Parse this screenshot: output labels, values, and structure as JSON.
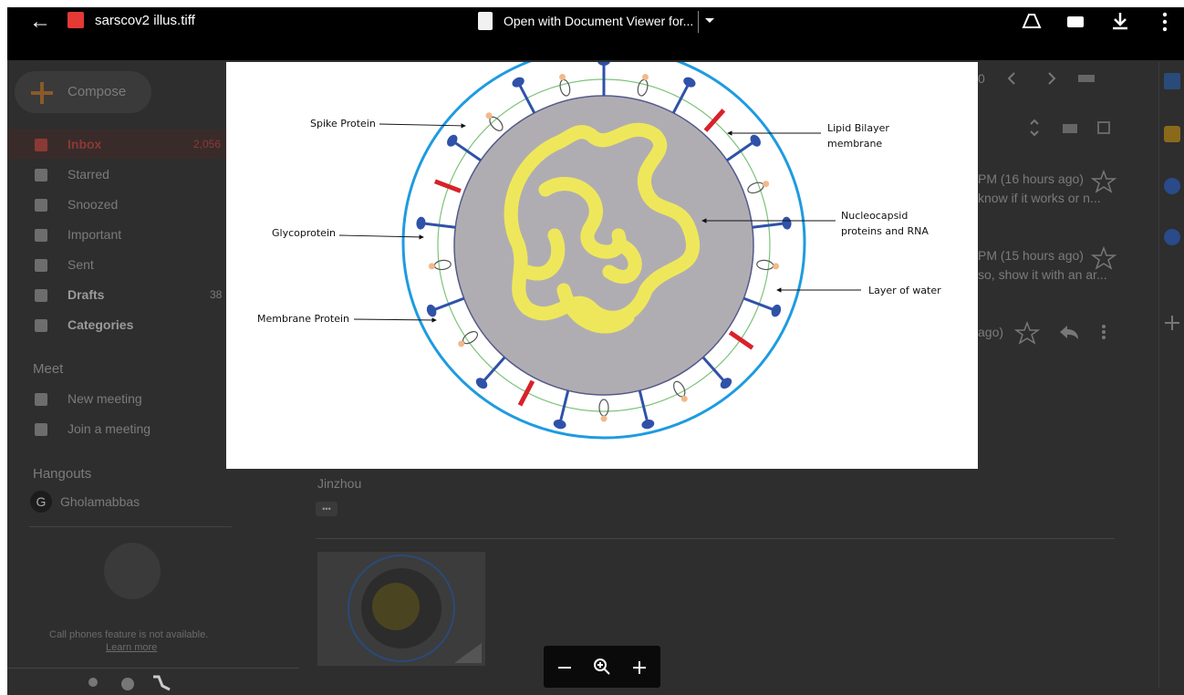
{
  "header": {
    "back": "←",
    "filename": "sarscov2 illus.tiff",
    "open_with": "Open with Document Viewer for..."
  },
  "gmail": {
    "compose": "Compose",
    "nav": [
      {
        "label": "Inbox",
        "count": "2,056"
      },
      {
        "label": "Starred"
      },
      {
        "label": "Snoozed"
      },
      {
        "label": "Important"
      },
      {
        "label": "Sent"
      },
      {
        "label": "Drafts",
        "count": "38"
      },
      {
        "label": "Categories"
      }
    ],
    "meet": {
      "title": "Meet",
      "items": [
        "New meeting",
        "Join a meeting"
      ]
    },
    "hangouts": {
      "title": "Hangouts",
      "user": "Gholamabbas",
      "initial": "G",
      "notice": "Call phones feature is not available.",
      "learn_more": "Learn more"
    },
    "page_count": "0",
    "messages": [
      {
        "time": "PM (16 hours ago)",
        "snippet": "know if it works or n..."
      },
      {
        "time": "PM (15 hours ago)",
        "snippet": "so, show it with an ar..."
      },
      {
        "time": "ago)"
      }
    ],
    "sender": "Jinzhou",
    "more": "•••"
  },
  "diagram": {
    "labels": {
      "spike": "Spike Protein",
      "lipid": [
        "Lipid Bilayer",
        "membrane"
      ],
      "nucleocapsid": [
        "Nucleocapsid",
        "proteins and RNA"
      ],
      "glycoprotein": "Glycoprotein",
      "water": "Layer of water",
      "membrane_protein": "Membrane Protein"
    }
  }
}
